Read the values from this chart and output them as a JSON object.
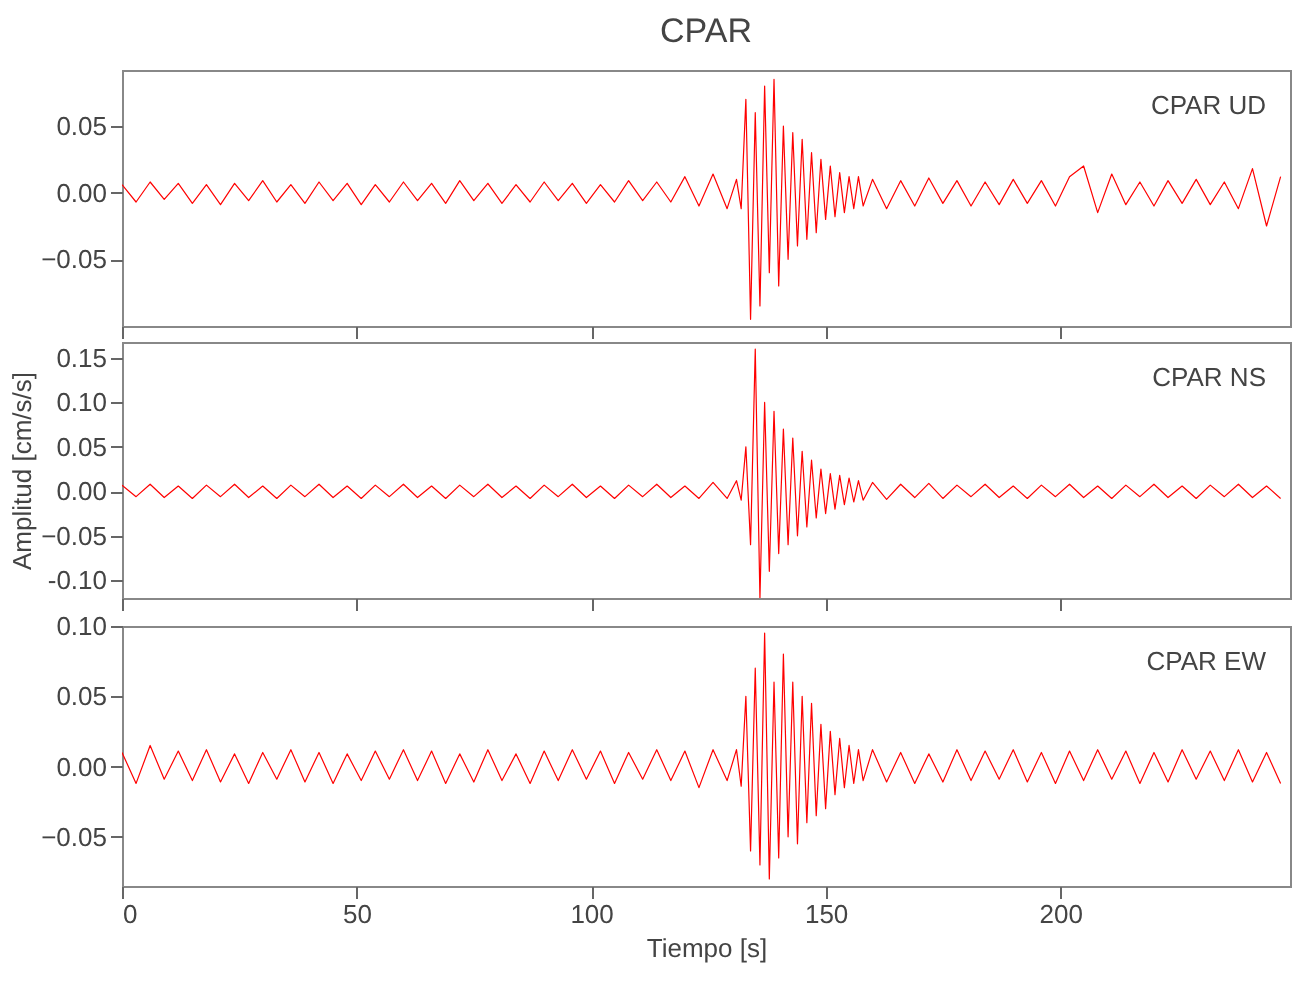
{
  "chart_data": [
    {
      "type": "line",
      "title": "CPAR",
      "annotations": [
        "CPAR   UD"
      ],
      "tick_labels": "y",
      "color": "#ff0000",
      "xlim": [
        0,
        249
      ],
      "xticks": [
        0,
        50,
        100,
        150,
        200
      ],
      "ylim": [
        -0.1,
        0.092
      ],
      "yticks": [
        -0.05,
        {
          "value": 0,
          "label": "0.00"
        },
        0.05
      ],
      "x": [
        0,
        3,
        6,
        9,
        12,
        15,
        18,
        21,
        24,
        27,
        30,
        33,
        36,
        39,
        42,
        45,
        48,
        51,
        54,
        57,
        60,
        63,
        66,
        69,
        72,
        75,
        78,
        81,
        84,
        87,
        90,
        93,
        96,
        99,
        102,
        105,
        108,
        111,
        114,
        117,
        120,
        123,
        126,
        129,
        131,
        132,
        133,
        134,
        135,
        136,
        137,
        138,
        139,
        140,
        141,
        142,
        143,
        144,
        145,
        146,
        147,
        148,
        149,
        150,
        151,
        152,
        153,
        154,
        155,
        156,
        157,
        158,
        160,
        163,
        166,
        169,
        172,
        175,
        178,
        181,
        184,
        187,
        190,
        193,
        196,
        199,
        202,
        205,
        208,
        211,
        214,
        217,
        220,
        223,
        226,
        229,
        232,
        235,
        238,
        241,
        244,
        247
      ],
      "values": [
        0.006,
        -0.007,
        0.008,
        -0.005,
        0.007,
        -0.008,
        0.006,
        -0.009,
        0.007,
        -0.006,
        0.009,
        -0.007,
        0.006,
        -0.008,
        0.008,
        -0.006,
        0.007,
        -0.009,
        0.006,
        -0.007,
        0.008,
        -0.006,
        0.007,
        -0.008,
        0.009,
        -0.006,
        0.007,
        -0.008,
        0.006,
        -0.007,
        0.008,
        -0.006,
        0.007,
        -0.008,
        0.006,
        -0.007,
        0.009,
        -0.006,
        0.008,
        -0.007,
        0.012,
        -0.01,
        0.014,
        -0.012,
        0.01,
        -0.012,
        0.07,
        -0.095,
        0.06,
        -0.085,
        0.08,
        -0.06,
        0.085,
        -0.07,
        0.05,
        -0.05,
        0.045,
        -0.04,
        0.04,
        -0.035,
        0.03,
        -0.03,
        0.025,
        -0.02,
        0.02,
        -0.018,
        0.015,
        -0.015,
        0.012,
        -0.012,
        0.012,
        -0.01,
        0.01,
        -0.012,
        0.009,
        -0.01,
        0.011,
        -0.008,
        0.009,
        -0.01,
        0.008,
        -0.009,
        0.01,
        -0.008,
        0.009,
        -0.01,
        0.012,
        0.02,
        -0.015,
        0.014,
        -0.009,
        0.008,
        -0.01,
        0.009,
        -0.008,
        0.01,
        -0.009,
        0.008,
        -0.012,
        0.018,
        -0.025,
        0.012
      ]
    },
    {
      "type": "line",
      "annotations": [
        "CPAR   NS"
      ],
      "ylabel": "Amplitud [cm/s/s]",
      "tick_labels": "y",
      "color": "#ff0000",
      "xlim": [
        0,
        249
      ],
      "xticks": [
        0,
        50,
        100,
        150,
        200
      ],
      "ylim": [
        -0.12,
        0.168
      ],
      "yticks": [
        {
          "value": -0.1,
          "label": "-0.10"
        },
        -0.05,
        {
          "value": 0,
          "label": "0.00"
        },
        0.05,
        {
          "value": 0.1,
          "label": "0.10"
        },
        0.15
      ],
      "x": [
        0,
        3,
        6,
        9,
        12,
        15,
        18,
        21,
        24,
        27,
        30,
        33,
        36,
        39,
        42,
        45,
        48,
        51,
        54,
        57,
        60,
        63,
        66,
        69,
        72,
        75,
        78,
        81,
        84,
        87,
        90,
        93,
        96,
        99,
        102,
        105,
        108,
        111,
        114,
        117,
        120,
        123,
        126,
        129,
        131,
        132,
        133,
        134,
        135,
        136,
        137,
        138,
        139,
        140,
        141,
        142,
        143,
        144,
        145,
        146,
        147,
        148,
        149,
        150,
        151,
        152,
        153,
        154,
        155,
        156,
        157,
        158,
        160,
        163,
        166,
        169,
        172,
        175,
        178,
        181,
        184,
        187,
        190,
        193,
        196,
        199,
        202,
        205,
        208,
        211,
        214,
        217,
        220,
        223,
        226,
        229,
        232,
        235,
        238,
        241,
        244,
        247
      ],
      "values": [
        0.007,
        -0.006,
        0.008,
        -0.007,
        0.006,
        -0.008,
        0.007,
        -0.006,
        0.008,
        -0.007,
        0.006,
        -0.008,
        0.007,
        -0.006,
        0.008,
        -0.007,
        0.006,
        -0.008,
        0.007,
        -0.006,
        0.008,
        -0.007,
        0.006,
        -0.008,
        0.007,
        -0.006,
        0.008,
        -0.007,
        0.006,
        -0.008,
        0.007,
        -0.006,
        0.008,
        -0.007,
        0.006,
        -0.008,
        0.007,
        -0.006,
        0.008,
        -0.007,
        0.006,
        -0.008,
        0.01,
        -0.008,
        0.012,
        -0.01,
        0.05,
        -0.06,
        0.16,
        -0.12,
        0.1,
        -0.09,
        0.09,
        -0.07,
        0.07,
        -0.06,
        0.06,
        -0.05,
        0.045,
        -0.04,
        0.035,
        -0.03,
        0.025,
        -0.025,
        0.02,
        -0.02,
        0.018,
        -0.015,
        0.015,
        -0.012,
        0.012,
        -0.01,
        0.01,
        -0.009,
        0.008,
        -0.007,
        0.009,
        -0.008,
        0.007,
        -0.006,
        0.008,
        -0.007,
        0.006,
        -0.008,
        0.007,
        -0.006,
        0.008,
        -0.007,
        0.006,
        -0.008,
        0.007,
        -0.006,
        0.008,
        -0.007,
        0.006,
        -0.008,
        0.007,
        -0.006,
        0.008,
        -0.007,
        0.006,
        -0.008
      ]
    },
    {
      "type": "line",
      "annotations": [
        "CPAR   EW"
      ],
      "xlabel": "Tiempo [s]",
      "color": "#ff0000",
      "xlim": [
        0,
        249
      ],
      "xticks": [
        0,
        50,
        100,
        150,
        200
      ],
      "ylim": [
        -0.085,
        0.1
      ],
      "yticks": [
        -0.05,
        {
          "value": 0,
          "label": "0.00"
        },
        0.05,
        {
          "value": 0.1,
          "label": "0.10"
        }
      ],
      "x": [
        0,
        3,
        6,
        9,
        12,
        15,
        18,
        21,
        24,
        27,
        30,
        33,
        36,
        39,
        42,
        45,
        48,
        51,
        54,
        57,
        60,
        63,
        66,
        69,
        72,
        75,
        78,
        81,
        84,
        87,
        90,
        93,
        96,
        99,
        102,
        105,
        108,
        111,
        114,
        117,
        120,
        123,
        126,
        129,
        131,
        132,
        133,
        134,
        135,
        136,
        137,
        138,
        139,
        140,
        141,
        142,
        143,
        144,
        145,
        146,
        147,
        148,
        149,
        150,
        151,
        152,
        153,
        154,
        155,
        156,
        157,
        158,
        160,
        163,
        166,
        169,
        172,
        175,
        178,
        181,
        184,
        187,
        190,
        193,
        196,
        199,
        202,
        205,
        208,
        211,
        214,
        217,
        220,
        223,
        226,
        229,
        232,
        235,
        238,
        241,
        244,
        247
      ],
      "values": [
        0.01,
        -0.012,
        0.015,
        -0.009,
        0.011,
        -0.01,
        0.012,
        -0.011,
        0.009,
        -0.012,
        0.01,
        -0.009,
        0.012,
        -0.011,
        0.01,
        -0.012,
        0.009,
        -0.01,
        0.011,
        -0.009,
        0.012,
        -0.01,
        0.011,
        -0.012,
        0.009,
        -0.011,
        0.012,
        -0.01,
        0.009,
        -0.012,
        0.011,
        -0.01,
        0.012,
        -0.009,
        0.011,
        -0.012,
        0.01,
        -0.009,
        0.012,
        -0.01,
        0.011,
        -0.015,
        0.012,
        -0.01,
        0.012,
        -0.014,
        0.05,
        -0.06,
        0.07,
        -0.07,
        0.095,
        -0.08,
        0.06,
        -0.065,
        0.08,
        -0.05,
        0.06,
        -0.055,
        0.05,
        -0.04,
        0.045,
        -0.035,
        0.03,
        -0.03,
        0.025,
        -0.02,
        0.02,
        -0.015,
        0.015,
        -0.012,
        0.012,
        -0.01,
        0.012,
        -0.011,
        0.01,
        -0.012,
        0.009,
        -0.011,
        0.012,
        -0.01,
        0.011,
        -0.009,
        0.012,
        -0.011,
        0.01,
        -0.012,
        0.011,
        -0.01,
        0.012,
        -0.009,
        0.011,
        -0.012,
        0.01,
        -0.011,
        0.012,
        -0.009,
        0.011,
        -0.01,
        0.012,
        -0.011,
        0.01,
        -0.012
      ]
    }
  ]
}
